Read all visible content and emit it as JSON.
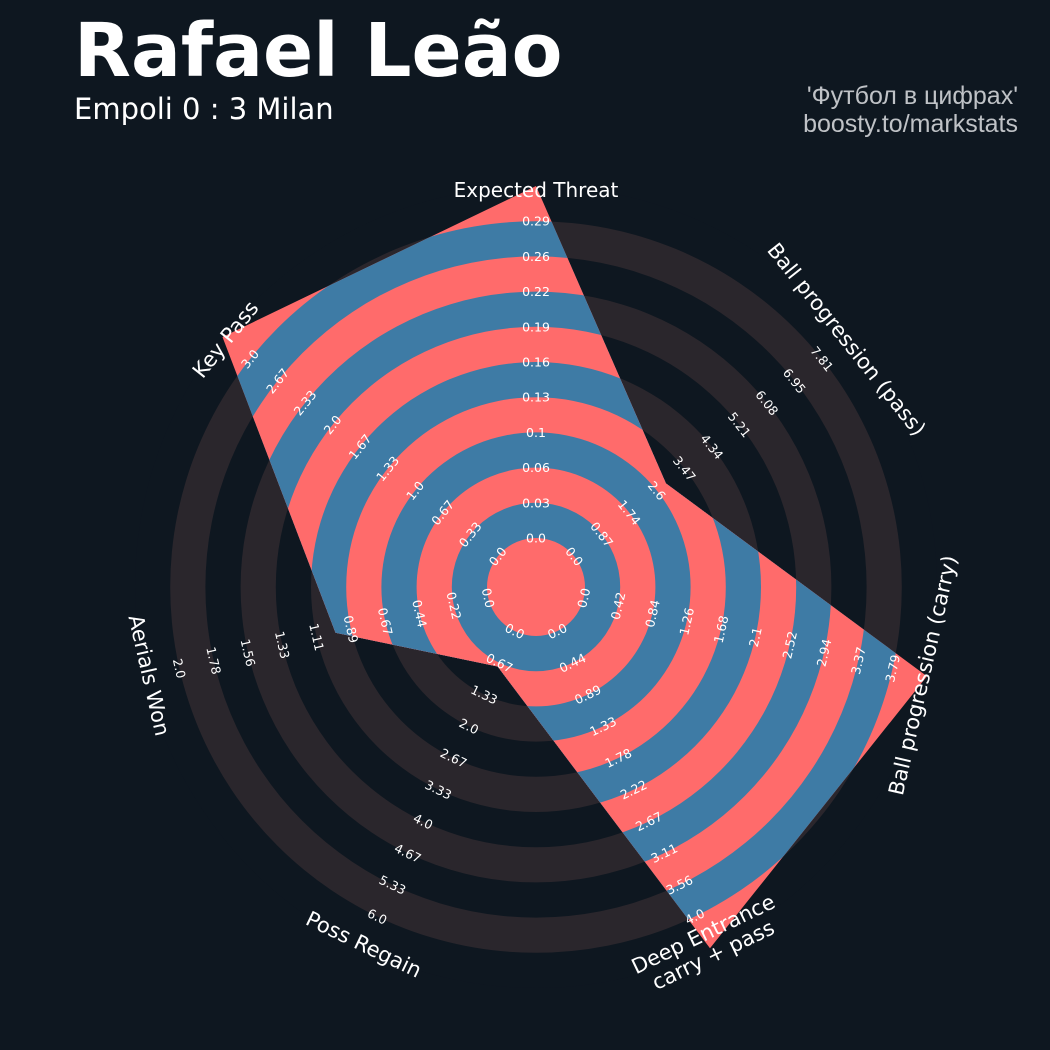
{
  "header": {
    "title": "Rafael Leão",
    "subtitle": "Empoli 0 : 3 Milan"
  },
  "credit": {
    "line1": "'Футбол в цифрах'",
    "line2": "boosty.to/markstats"
  },
  "colors": {
    "background": "#0e1720",
    "ring_dark": "#2a262c",
    "ring_band_light": "#3e7ba5",
    "ring_band_accent": "#ff6b6b",
    "label": "#ffffff"
  },
  "chart_data": {
    "type": "radar",
    "parameters": [
      {
        "name": "Expected Threat",
        "value": 0.29,
        "ticks": [
          "0.0",
          "0.03",
          "0.06",
          "0.1",
          "0.13",
          "0.16",
          "0.19",
          "0.22",
          "0.26",
          "0.29"
        ]
      },
      {
        "name": "Ball progression (pass)",
        "value": 2.6,
        "ticks": [
          "0.0",
          "0.87",
          "1.74",
          "2.6",
          "3.47",
          "4.34",
          "5.21",
          "6.08",
          "6.95",
          "7.81"
        ]
      },
      {
        "name": "Ball progression (carry)",
        "value": 3.79,
        "ticks": [
          "0.0",
          "0.42",
          "0.84",
          "1.26",
          "1.68",
          "2.1",
          "2.52",
          "2.94",
          "3.37",
          "3.79"
        ]
      },
      {
        "name": "Deep Entrance\ncarry + pass",
        "value": 4.0,
        "ticks": [
          "0.0",
          "0.44",
          "0.89",
          "1.33",
          "1.78",
          "2.22",
          "2.67",
          "3.11",
          "3.56",
          "4.0"
        ]
      },
      {
        "name": "Poss Regain",
        "value": 0.67,
        "ticks": [
          "0.0",
          "0.67",
          "1.33",
          "2.0",
          "2.67",
          "3.33",
          "4.0",
          "4.67",
          "5.33",
          "6.0"
        ]
      },
      {
        "name": "Aerials Won",
        "value": 0.89,
        "ticks": [
          "0.0",
          "0.22",
          "0.44",
          "0.67",
          "0.89",
          "1.11",
          "1.33",
          "1.56",
          "1.78",
          "2.0"
        ]
      },
      {
        "name": "Key Pass",
        "value": 3.0,
        "ticks": [
          "0.0",
          "0.33",
          "0.67",
          "1.0",
          "1.33",
          "1.67",
          "2.0",
          "2.33",
          "2.67",
          "3.0"
        ]
      }
    ]
  }
}
